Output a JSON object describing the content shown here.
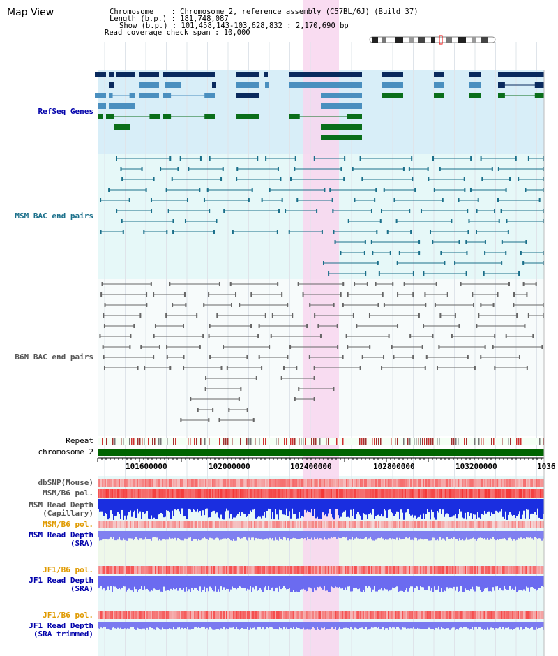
{
  "header": {
    "title": "Map View",
    "chromosome_key": "Chromosome",
    "chromosome_value": "Chromosome 2, reference assembly (C57BL/6J) (Build 37)",
    "length_key": "Length (b.p.)",
    "length_value": "181,748,087",
    "show_key": "Show (b.p.)",
    "show_value": "101,458,143-103,628,832 : 2,170,690 bp",
    "span_key": "Read coverage check span",
    "span_value": "10,000"
  },
  "tracks": {
    "refseq": "RefSeq Genes",
    "msm_bac": "MSM BAC end pairs",
    "b6n_bac": "B6N BAC end pairs",
    "repeat": "Repeat",
    "chromosome": "chromosome 2",
    "dbsnp": "dbSNP(Mouse)",
    "msm_b6_pol_1": "MSM/B6 pol.",
    "msm_depth_cap_1": "MSM Read Depth",
    "msm_depth_cap_2": "(Capillary)",
    "msm_b6_pol_2": "MSM/B6 pol.",
    "msm_depth_sra_1": "MSM Read Depth",
    "msm_depth_sra_2": "(SRA)",
    "jf1_b6_pol_1": "JF1/B6 pol.",
    "jf1_depth_sra_1": "JF1 Read Depth",
    "jf1_depth_sra_2": "(SRA)",
    "jf1_b6_pol_2": "JF1/B6 pol.",
    "jf1_depth_trim_1": "JF1 Read Depth",
    "jf1_depth_trim_2": "(SRA trimmed)"
  },
  "ruler": {
    "ticks": [
      "101600000",
      "102000000",
      "102400000",
      "102800000",
      "103200000",
      "1036"
    ]
  },
  "colors": {
    "refseq_bg": "#d8eef8",
    "bac_bg": "#e6f8f8",
    "highlight": "#f8d6ef",
    "chromosome_bar": "#006400",
    "refseq_dark": "#0a2a5e",
    "refseq_mid": "#4a8fbf",
    "refseq_green": "#0a6e1a",
    "msm_bac": "#1a6f8a",
    "b6n_bac": "#666666",
    "depth_blue": "#1a2ee0",
    "depth_light": "#8080f0",
    "pol_red": "#f06060",
    "label_blue": "#0000aa",
    "label_teal": "#1a6f8a",
    "label_orange": "#e09a00"
  }
}
